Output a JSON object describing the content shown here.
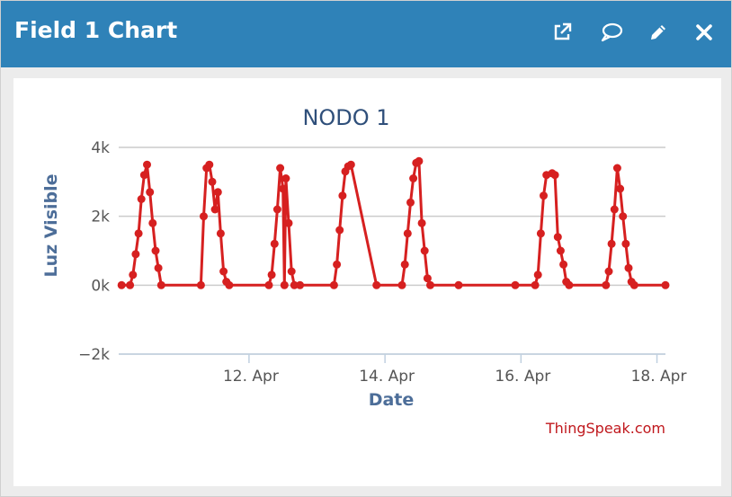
{
  "header": {
    "title": "Field 1 Chart",
    "icons": [
      "external-link-icon",
      "comment-icon",
      "pencil-icon",
      "close-icon"
    ]
  },
  "colors": {
    "header_bg": "#2f82b8",
    "series": "#d62020",
    "credit": "#c0181d",
    "axis_title": "#4d6e99"
  },
  "credit": "ThingSpeak.com",
  "chart_data": {
    "type": "line",
    "title": "NODO 1",
    "xlabel": "Date",
    "ylabel": "Luz Visible",
    "ylim": [
      -2000,
      4000
    ],
    "yticks": [
      -2000,
      0,
      2000,
      4000
    ],
    "ytick_labels": [
      "−2k",
      "0k",
      "2k",
      "4k"
    ],
    "xlim": [
      "2019-04-10 02:00",
      "2019-04-18 03:00"
    ],
    "xticks": [
      "12. Apr",
      "14. Apr",
      "16. Apr",
      "18. Apr"
    ],
    "grid": true,
    "series": [
      {
        "points": [
          [
            "2019-04-10 03:00",
            0
          ],
          [
            "2019-04-10 06:00",
            0
          ],
          [
            "2019-04-10 07:00",
            300
          ],
          [
            "2019-04-10 08:00",
            900
          ],
          [
            "2019-04-10 09:00",
            1500
          ],
          [
            "2019-04-10 10:00",
            2500
          ],
          [
            "2019-04-10 11:00",
            3200
          ],
          [
            "2019-04-10 12:00",
            3500
          ],
          [
            "2019-04-10 13:00",
            2700
          ],
          [
            "2019-04-10 14:00",
            1800
          ],
          [
            "2019-04-10 15:00",
            1000
          ],
          [
            "2019-04-10 16:00",
            500
          ],
          [
            "2019-04-10 17:00",
            0
          ],
          [
            "2019-04-11 07:00",
            0
          ],
          [
            "2019-04-11 08:00",
            2000
          ],
          [
            "2019-04-11 09:00",
            3400
          ],
          [
            "2019-04-11 10:00",
            3500
          ],
          [
            "2019-04-11 11:00",
            3000
          ],
          [
            "2019-04-11 12:00",
            2200
          ],
          [
            "2019-04-11 13:00",
            2700
          ],
          [
            "2019-04-11 14:00",
            1500
          ],
          [
            "2019-04-11 15:00",
            400
          ],
          [
            "2019-04-11 16:00",
            100
          ],
          [
            "2019-04-11 17:00",
            0
          ],
          [
            "2019-04-12 07:00",
            0
          ],
          [
            "2019-04-12 08:00",
            300
          ],
          [
            "2019-04-12 09:00",
            1200
          ],
          [
            "2019-04-12 10:00",
            2200
          ],
          [
            "2019-04-12 11:00",
            3400
          ],
          [
            "2019-04-12 12:00",
            2800
          ],
          [
            "2019-04-12 12:30",
            0
          ],
          [
            "2019-04-12 13:00",
            3100
          ],
          [
            "2019-04-12 14:00",
            1800
          ],
          [
            "2019-04-12 15:00",
            400
          ],
          [
            "2019-04-12 16:00",
            0
          ],
          [
            "2019-04-12 18:00",
            0
          ],
          [
            "2019-04-13 06:00",
            0
          ],
          [
            "2019-04-13 07:00",
            600
          ],
          [
            "2019-04-13 08:00",
            1600
          ],
          [
            "2019-04-13 09:00",
            2600
          ],
          [
            "2019-04-13 10:00",
            3300
          ],
          [
            "2019-04-13 11:00",
            3450
          ],
          [
            "2019-04-13 12:00",
            3500
          ],
          [
            "2019-04-13 21:00",
            0
          ],
          [
            "2019-04-14 06:00",
            0
          ],
          [
            "2019-04-14 07:00",
            600
          ],
          [
            "2019-04-14 08:00",
            1500
          ],
          [
            "2019-04-14 09:00",
            2400
          ],
          [
            "2019-04-14 10:00",
            3100
          ],
          [
            "2019-04-14 11:00",
            3550
          ],
          [
            "2019-04-14 12:00",
            3600
          ],
          [
            "2019-04-14 13:00",
            1800
          ],
          [
            "2019-04-14 14:00",
            1000
          ],
          [
            "2019-04-14 15:00",
            200
          ],
          [
            "2019-04-14 16:00",
            0
          ],
          [
            "2019-04-15 02:00",
            0
          ],
          [
            "2019-04-15 22:00",
            0
          ],
          [
            "2019-04-16 05:00",
            0
          ],
          [
            "2019-04-16 06:00",
            300
          ],
          [
            "2019-04-16 07:00",
            1500
          ],
          [
            "2019-04-16 08:00",
            2600
          ],
          [
            "2019-04-16 09:00",
            3200
          ],
          [
            "2019-04-16 11:00",
            3250
          ],
          [
            "2019-04-16 12:00",
            3200
          ],
          [
            "2019-04-16 13:00",
            1400
          ],
          [
            "2019-04-16 14:00",
            1000
          ],
          [
            "2019-04-16 15:00",
            600
          ],
          [
            "2019-04-16 16:00",
            100
          ],
          [
            "2019-04-16 17:00",
            0
          ],
          [
            "2019-04-17 06:00",
            0
          ],
          [
            "2019-04-17 07:00",
            400
          ],
          [
            "2019-04-17 08:00",
            1200
          ],
          [
            "2019-04-17 09:00",
            2200
          ],
          [
            "2019-04-17 10:00",
            3400
          ],
          [
            "2019-04-17 11:00",
            2800
          ],
          [
            "2019-04-17 12:00",
            2000
          ],
          [
            "2019-04-17 13:00",
            1200
          ],
          [
            "2019-04-17 14:00",
            500
          ],
          [
            "2019-04-17 15:00",
            100
          ],
          [
            "2019-04-17 16:00",
            0
          ],
          [
            "2019-04-18 03:00",
            0
          ]
        ]
      }
    ]
  }
}
